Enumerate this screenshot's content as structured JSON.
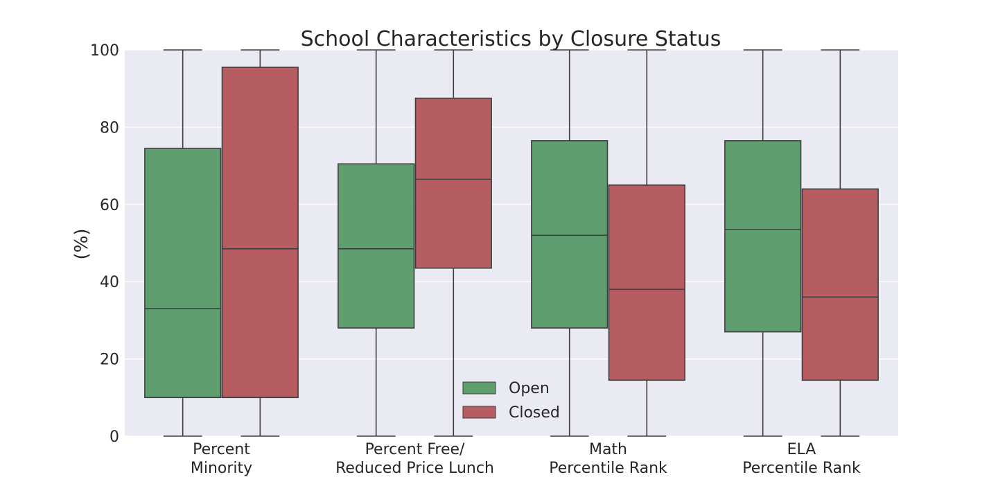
{
  "chart_data": {
    "type": "box",
    "title": "School Characteristics by Closure Status",
    "xlabel": "",
    "ylabel": "(%)",
    "ylim": [
      0,
      100
    ],
    "yticks": [
      0,
      20,
      40,
      60,
      80,
      100
    ],
    "grid": true,
    "legend_position": "bottom-center",
    "categories": [
      [
        "Percent",
        "Minority"
      ],
      [
        "Percent Free/",
        "Reduced Price Lunch"
      ],
      [
        "Math",
        "Percentile Rank"
      ],
      [
        "ELA",
        "Percentile Rank"
      ]
    ],
    "series": [
      {
        "name": "Open",
        "color": "#5f9e6e",
        "boxes": [
          {
            "whislo": 0,
            "q1": 10,
            "med": 33,
            "q3": 74.5,
            "whishi": 100
          },
          {
            "whislo": 0,
            "q1": 28,
            "med": 48.5,
            "q3": 70.5,
            "whishi": 100
          },
          {
            "whislo": 0,
            "q1": 28,
            "med": 52,
            "q3": 76.5,
            "whishi": 100
          },
          {
            "whislo": 0,
            "q1": 27,
            "med": 53.5,
            "q3": 76.5,
            "whishi": 100
          }
        ]
      },
      {
        "name": "Closed",
        "color": "#b55d60",
        "boxes": [
          {
            "whislo": 0,
            "q1": 10,
            "med": 48.5,
            "q3": 95.5,
            "whishi": 100
          },
          {
            "whislo": 0,
            "q1": 43.5,
            "med": 66.5,
            "q3": 87.5,
            "whishi": 100
          },
          {
            "whislo": 0,
            "q1": 14.5,
            "med": 38,
            "q3": 65,
            "whishi": 100
          },
          {
            "whislo": 0,
            "q1": 14.5,
            "med": 36,
            "q3": 64,
            "whishi": 100
          }
        ]
      }
    ],
    "colors": {
      "plot_background": "#eaeaf2",
      "grid": "#ffffff",
      "box_edge": "#3f3f3f"
    }
  }
}
